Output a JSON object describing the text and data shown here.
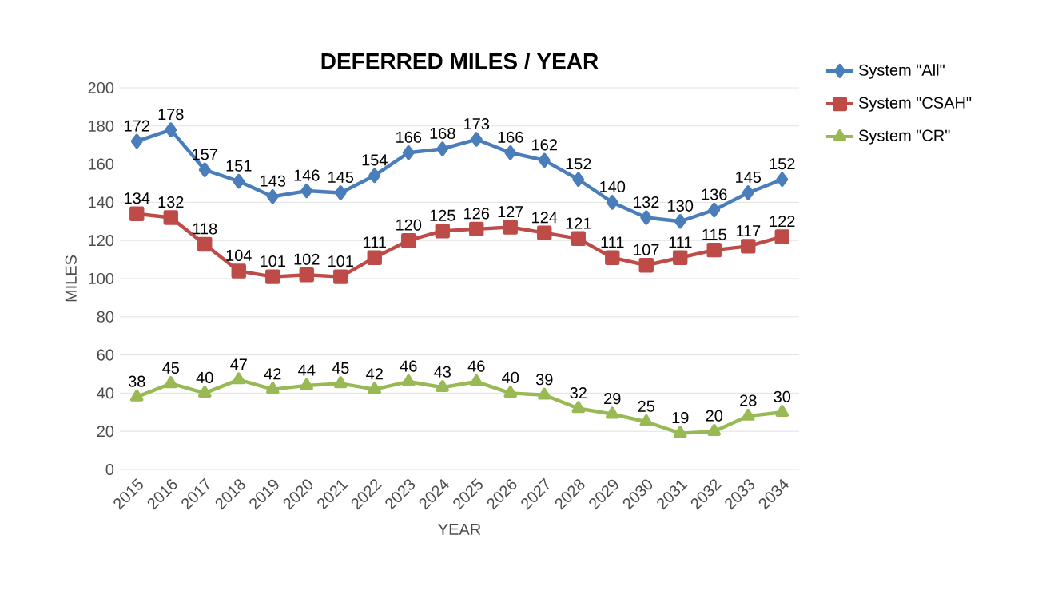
{
  "chart_data": {
    "type": "line",
    "title": "DEFERRED MILES / YEAR",
    "xlabel": "YEAR",
    "ylabel": "MILES",
    "categories": [
      "2015",
      "2016",
      "2017",
      "2018",
      "2019",
      "2020",
      "2021",
      "2022",
      "2023",
      "2024",
      "2025",
      "2026",
      "2027",
      "2028",
      "2029",
      "2030",
      "2031",
      "2032",
      "2033",
      "2034"
    ],
    "series": [
      {
        "name": "System \"All\"",
        "color": "#4a7ebb",
        "marker": "diamond",
        "values": [
          172,
          178,
          157,
          151,
          143,
          146,
          145,
          154,
          166,
          168,
          173,
          166,
          162,
          152,
          140,
          132,
          130,
          136,
          145,
          152
        ]
      },
      {
        "name": "System \"CSAH\"",
        "color": "#be4b48",
        "marker": "square",
        "values": [
          134,
          132,
          118,
          104,
          101,
          102,
          101,
          111,
          120,
          125,
          126,
          127,
          124,
          121,
          111,
          107,
          111,
          115,
          117,
          122
        ]
      },
      {
        "name": "System \"CR\"",
        "color": "#98b954",
        "marker": "triangle",
        "values": [
          38,
          45,
          40,
          47,
          42,
          44,
          45,
          42,
          46,
          43,
          46,
          40,
          39,
          32,
          29,
          25,
          19,
          20,
          28,
          30
        ]
      }
    ],
    "ylim": [
      0,
      200
    ],
    "yticks": [
      0,
      20,
      40,
      60,
      80,
      100,
      120,
      140,
      160,
      180,
      200
    ],
    "grid": "y",
    "legend": "top right",
    "data_labels": true,
    "line_style": "solid"
  }
}
